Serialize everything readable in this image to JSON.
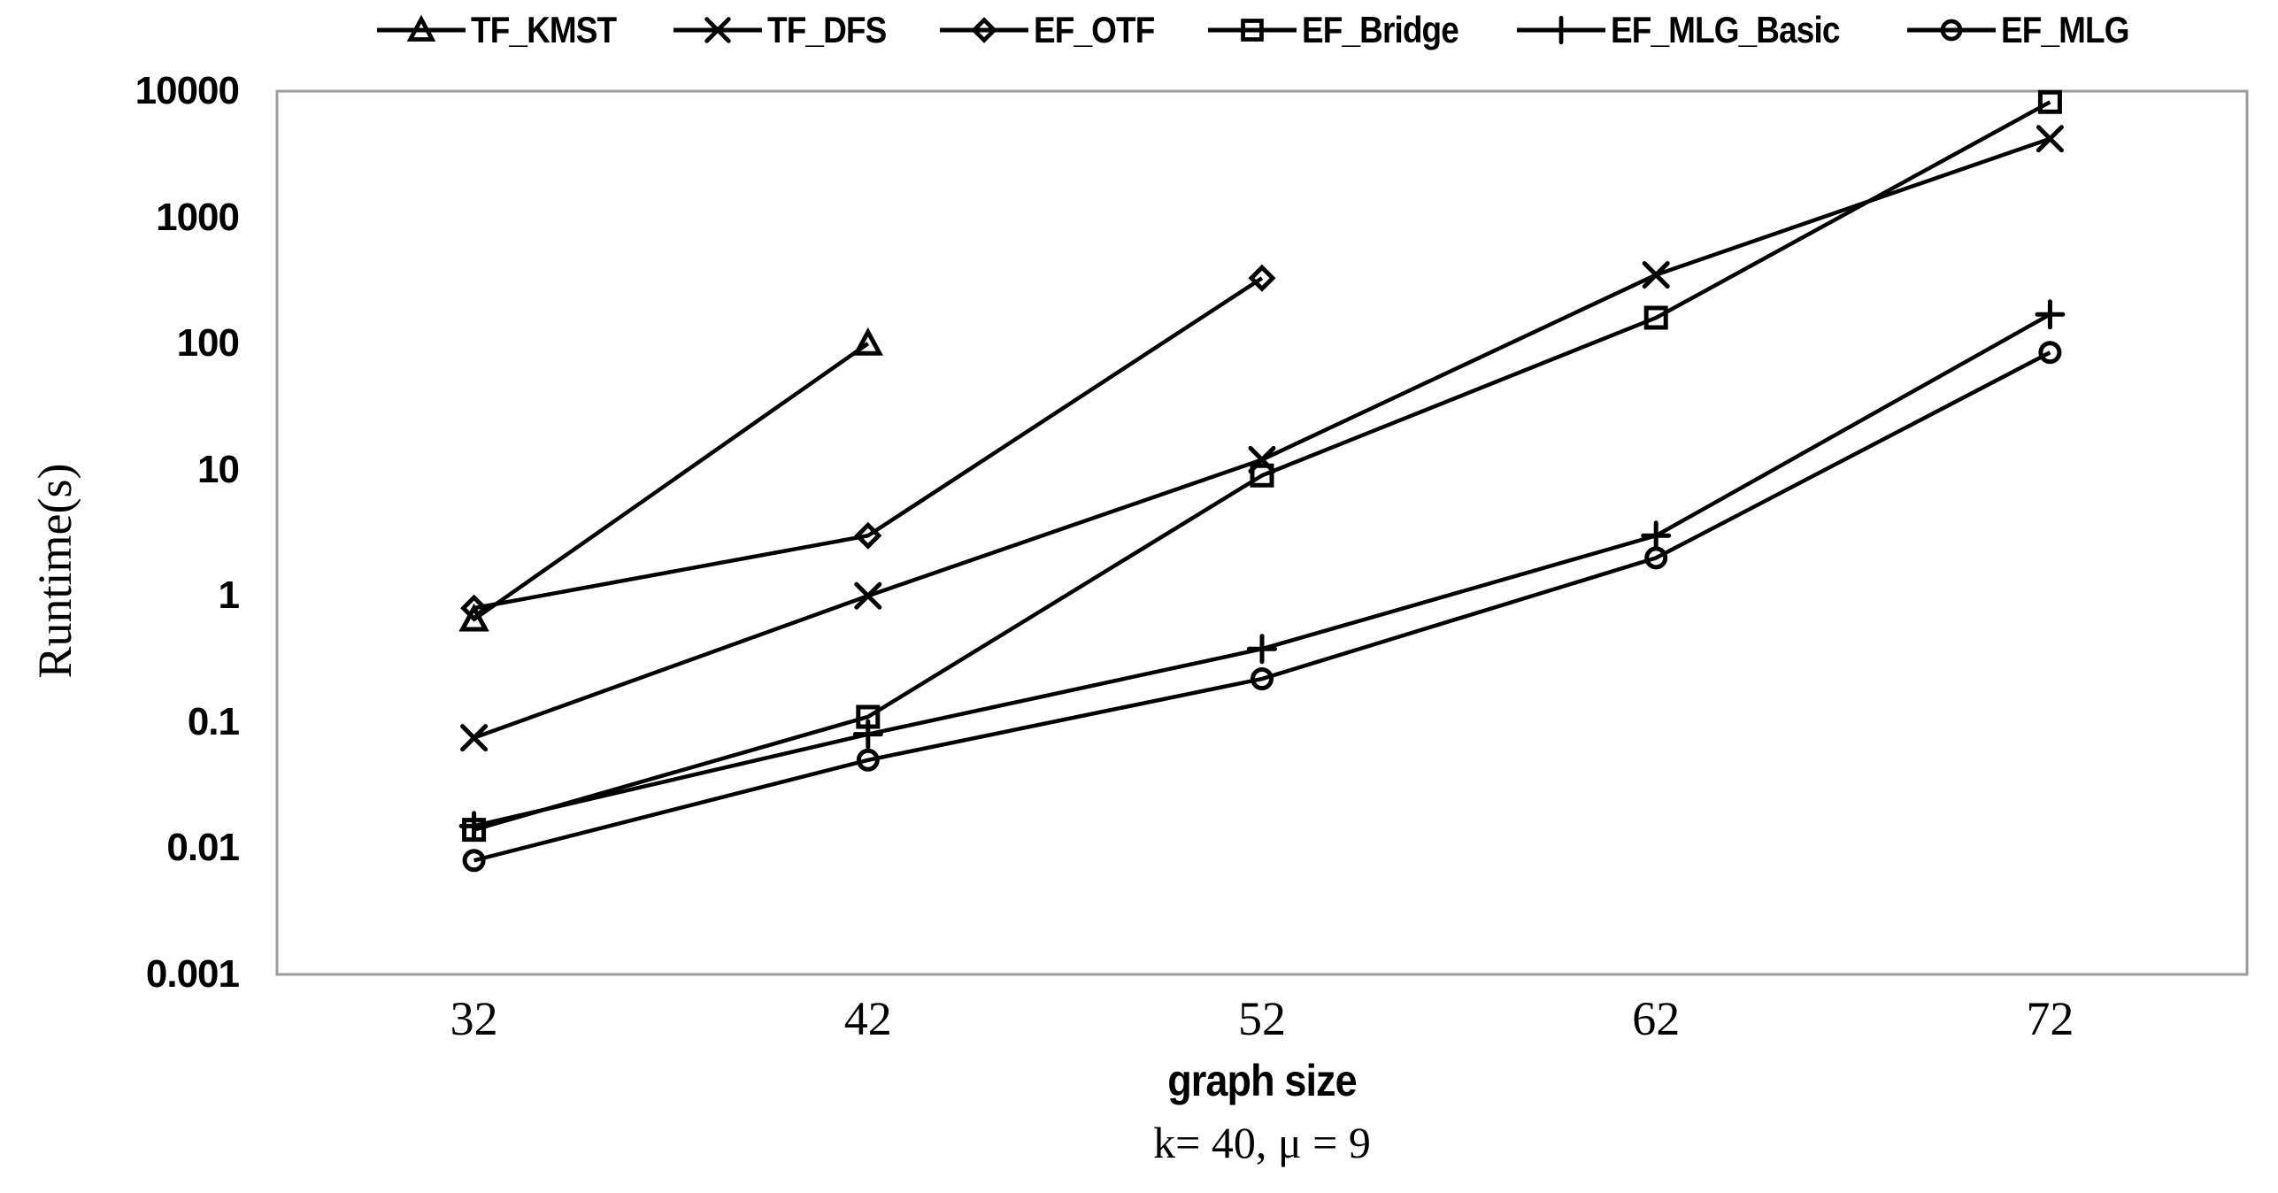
{
  "chart_data": {
    "type": "line",
    "title": "",
    "xlabel": "graph size",
    "ylabel": "Runtime(s)",
    "caption": "k= 40, μ = 9",
    "x_categories": [
      32,
      42,
      52,
      62,
      72
    ],
    "y_scale": "log",
    "ylim": [
      0.001,
      10000
    ],
    "y_ticks": [
      "10000",
      "1000",
      "100",
      "10",
      "1",
      "0.1",
      "0.01",
      "0.001"
    ],
    "grid": false,
    "legend_position": "top",
    "series": [
      {
        "name": "TF_KMST",
        "marker": "triangle",
        "x": [
          32,
          42
        ],
        "values": [
          0.65,
          100
        ]
      },
      {
        "name": "TF_DFS",
        "marker": "x",
        "x": [
          32,
          42,
          52,
          62,
          72
        ],
        "values": [
          0.075,
          1,
          12,
          350,
          4200
        ]
      },
      {
        "name": "EF_OTF",
        "marker": "diamond",
        "x": [
          32,
          42,
          52
        ],
        "values": [
          0.8,
          3,
          330
        ]
      },
      {
        "name": "EF_Bridge",
        "marker": "square",
        "x": [
          32,
          42,
          52,
          62,
          72
        ],
        "values": [
          0.014,
          0.11,
          9,
          160,
          8200
        ]
      },
      {
        "name": "EF_MLG_Basic",
        "marker": "plus",
        "x": [
          32,
          42,
          52,
          62,
          72
        ],
        "values": [
          0.015,
          0.08,
          0.38,
          3,
          170
        ]
      },
      {
        "name": "EF_MLG",
        "marker": "circle",
        "x": [
          32,
          42,
          52,
          62,
          72
        ],
        "values": [
          0.008,
          0.05,
          0.22,
          2,
          85
        ]
      }
    ],
    "colors": {
      "series_stroke": "#000000",
      "frame": "#9c9c9c",
      "text": "#000000"
    }
  }
}
